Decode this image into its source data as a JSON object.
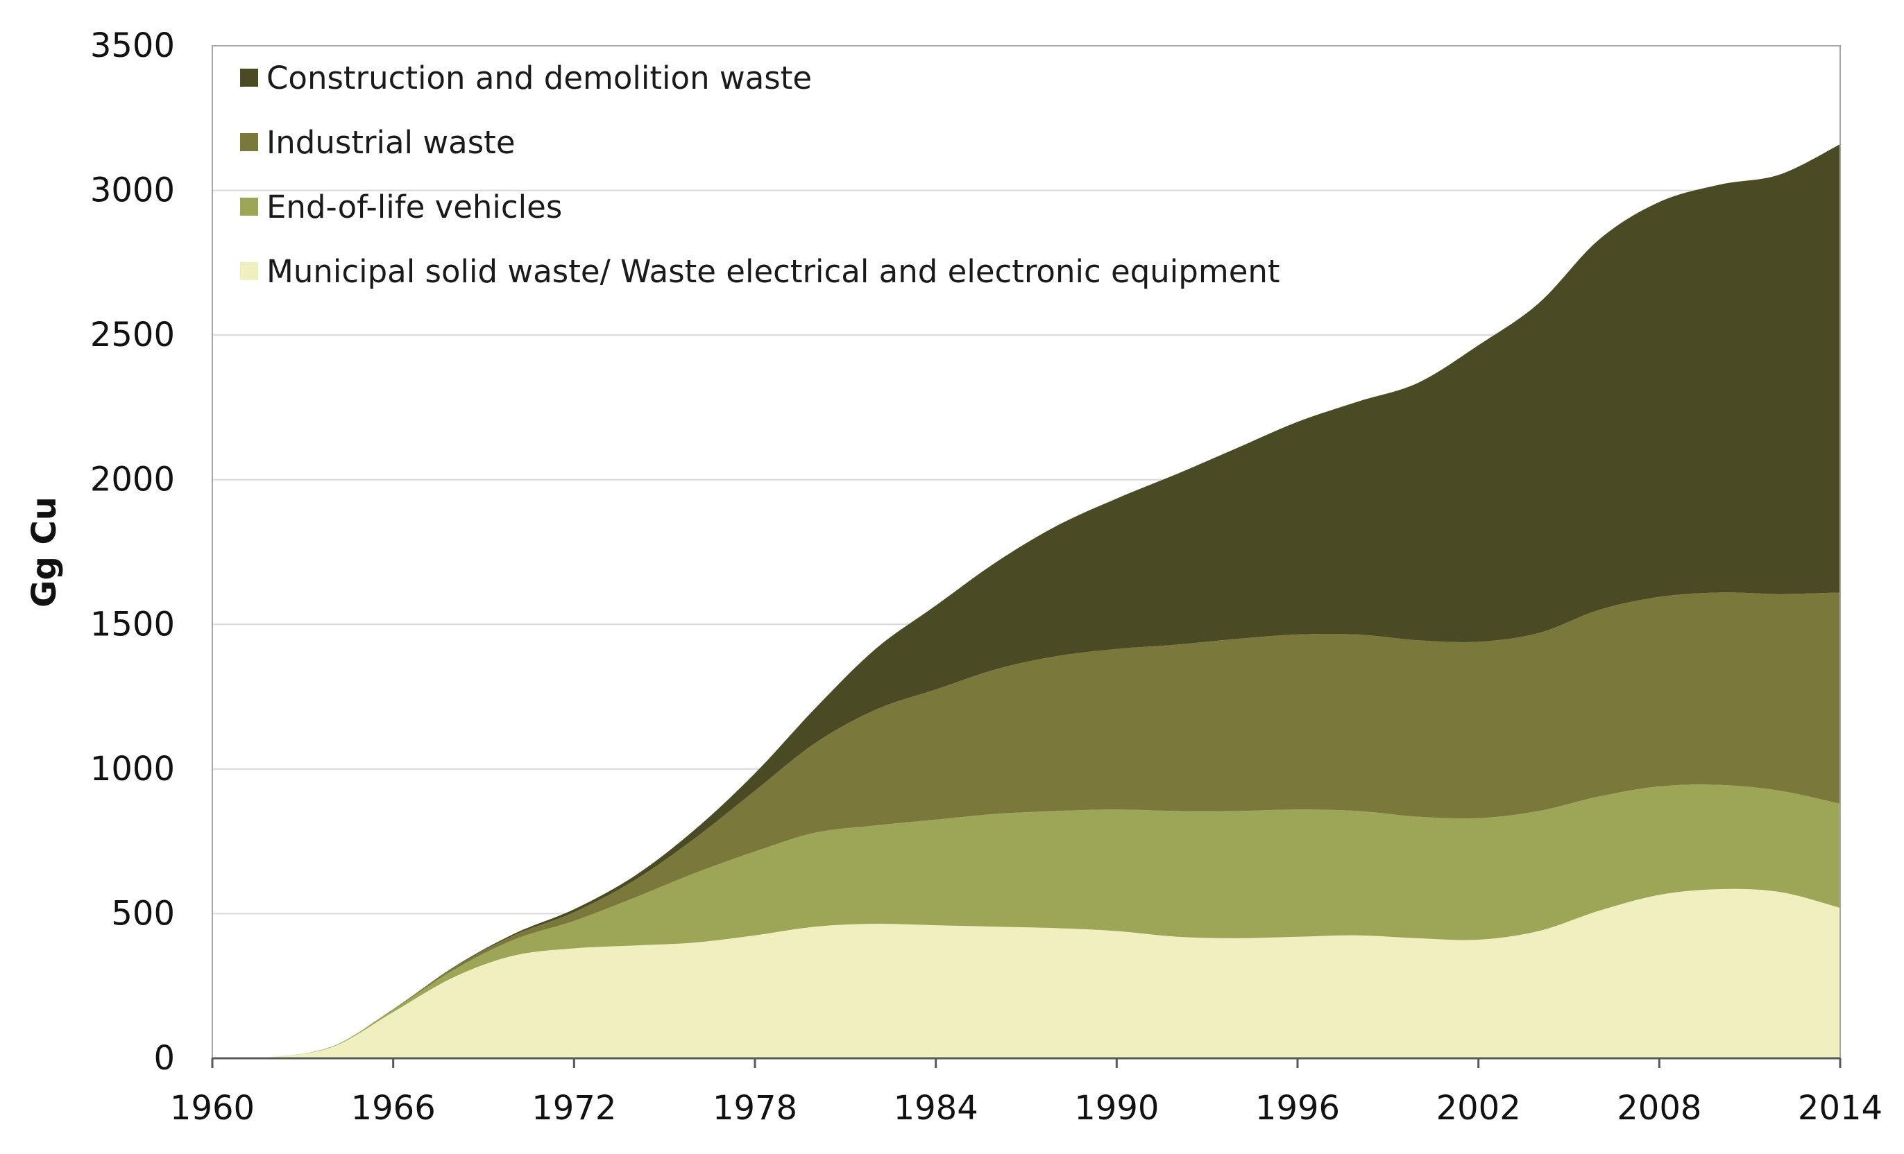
{
  "chart_data": {
    "type": "area",
    "stacked": true,
    "title": "",
    "xlabel": "",
    "ylabel": "Gg Cu",
    "xlim": [
      1960,
      2014
    ],
    "ylim": [
      0,
      3500
    ],
    "x_ticks": [
      "1960",
      "1966",
      "1972",
      "1978",
      "1984",
      "1990",
      "1996",
      "2002",
      "2008",
      "2014"
    ],
    "y_ticks": [
      "0",
      "500",
      "1000",
      "1500",
      "2000",
      "2500",
      "3000",
      "3500"
    ],
    "grid": true,
    "legend_position": "top-left",
    "x": [
      1960,
      1962,
      1964,
      1966,
      1968,
      1970,
      1972,
      1974,
      1976,
      1978,
      1980,
      1982,
      1984,
      1986,
      1988,
      1990,
      1992,
      1994,
      1996,
      1998,
      2000,
      2002,
      2004,
      2006,
      2008,
      2010,
      2012,
      2014
    ],
    "series": [
      {
        "name": "Municipal solid waste/ Waste electrical and electronic equipment",
        "color": "#efefbf",
        "values": [
          0,
          5,
          40,
          160,
          280,
          355,
          380,
          390,
          400,
          425,
          455,
          465,
          460,
          455,
          450,
          440,
          420,
          415,
          420,
          425,
          415,
          410,
          440,
          510,
          565,
          585,
          575,
          520
        ]
      },
      {
        "name": "End-of-life vehicles",
        "color": "#9da556",
        "values": [
          0,
          0,
          2,
          8,
          25,
          55,
          95,
          165,
          240,
          290,
          325,
          340,
          365,
          390,
          405,
          420,
          435,
          440,
          440,
          430,
          420,
          420,
          415,
          395,
          375,
          360,
          350,
          360
        ]
      },
      {
        "name": "Industrial waste",
        "color": "#7b783c",
        "values": [
          0,
          0,
          0,
          2,
          8,
          15,
          30,
          60,
          120,
          210,
          310,
          400,
          450,
          500,
          535,
          555,
          575,
          595,
          605,
          610,
          610,
          610,
          615,
          645,
          655,
          665,
          680,
          730
        ]
      },
      {
        "name": "Construction and demolition waste",
        "color": "#4a4a25",
        "values": [
          0,
          0,
          0,
          0,
          2,
          5,
          10,
          15,
          30,
          60,
          120,
          210,
          290,
          370,
          450,
          520,
          590,
          660,
          735,
          805,
          890,
          1025,
          1140,
          1280,
          1365,
          1410,
          1450,
          1550
        ]
      }
    ],
    "legend_order": [
      "Construction and demolition waste",
      "Industrial waste",
      "End-of-life vehicles",
      "Municipal solid waste/ Waste electrical and electronic equipment"
    ]
  },
  "colors": {
    "grid": "#d9d9d9",
    "frame": "#a6a6a6",
    "axis": "#595959"
  }
}
